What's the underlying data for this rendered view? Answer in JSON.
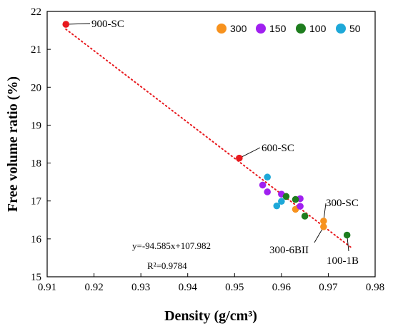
{
  "chart_data": {
    "type": "scatter",
    "xlabel": "Density (g/cm³)",
    "ylabel": "Free volume ratio (%)",
    "xlim": [
      0.91,
      0.98
    ],
    "ylim": [
      15,
      22
    ],
    "xticks": [
      "0.91",
      "0.92",
      "0.93",
      "0.94",
      "0.95",
      "0.96",
      "0.97",
      "0.98"
    ],
    "yticks": [
      "15",
      "16",
      "17",
      "18",
      "19",
      "20",
      "21",
      "22"
    ],
    "grid": false,
    "legend_position": "top-right",
    "series": [
      {
        "name": "300",
        "color": "#f7921e",
        "points": [
          [
            0.963,
            16.78
          ],
          [
            0.969,
            16.47
          ],
          [
            0.969,
            16.32
          ]
        ]
      },
      {
        "name": "150",
        "color": "#a020f0",
        "points": [
          [
            0.956,
            17.42
          ],
          [
            0.957,
            17.24
          ],
          [
            0.96,
            17.18
          ],
          [
            0.964,
            17.06
          ],
          [
            0.964,
            16.86
          ]
        ]
      },
      {
        "name": "100",
        "color": "#1e7d1e",
        "points": [
          [
            0.961,
            17.12
          ],
          [
            0.963,
            17.04
          ],
          [
            0.965,
            16.6
          ],
          [
            0.974,
            16.1
          ]
        ]
      },
      {
        "name": "50",
        "color": "#1ea8d8",
        "points": [
          [
            0.957,
            17.63
          ],
          [
            0.959,
            16.87
          ],
          [
            0.96,
            16.99
          ]
        ]
      },
      {
        "name": "",
        "color": "#e8191e",
        "points": [
          [
            0.914,
            21.66
          ],
          [
            0.951,
            18.13
          ]
        ]
      }
    ],
    "trendline": {
      "slope": -94.585,
      "intercept": 107.982,
      "x_range": [
        0.914,
        0.975
      ],
      "color": "#e8191e"
    },
    "equation": "y=-94.585x+107.982",
    "r_squared": "R²=0.9784",
    "annotations": [
      {
        "text": "900-SC",
        "target": [
          0.914,
          21.66
        ]
      },
      {
        "text": "600-SC",
        "target": [
          0.951,
          18.13
        ]
      },
      {
        "text": "300-SC",
        "target": [
          0.969,
          16.47
        ]
      },
      {
        "text": "300-6BII",
        "target": [
          0.969,
          16.32
        ]
      },
      {
        "text": "100-1B",
        "target": [
          0.974,
          16.1
        ]
      }
    ]
  }
}
